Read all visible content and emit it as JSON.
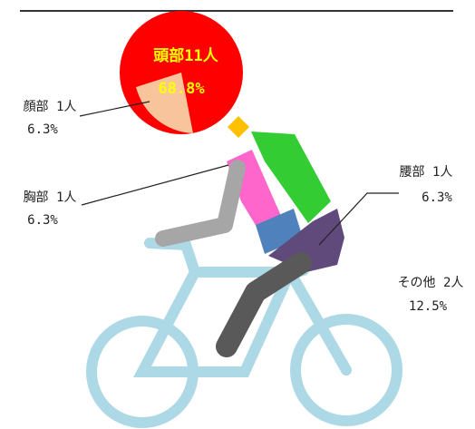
{
  "labels": [
    {
      "label": "頭部11人",
      "percent": "68.8%"
    },
    {
      "label": "顔部 1人",
      "percent": "6.3%"
    },
    {
      "label": "胸部 1人",
      "percent": "6.3%"
    },
    {
      "label": "腰部 1人",
      "percent": "6.3%"
    },
    {
      "label": "その他 2人",
      "percent": "12.5%"
    }
  ]
}
